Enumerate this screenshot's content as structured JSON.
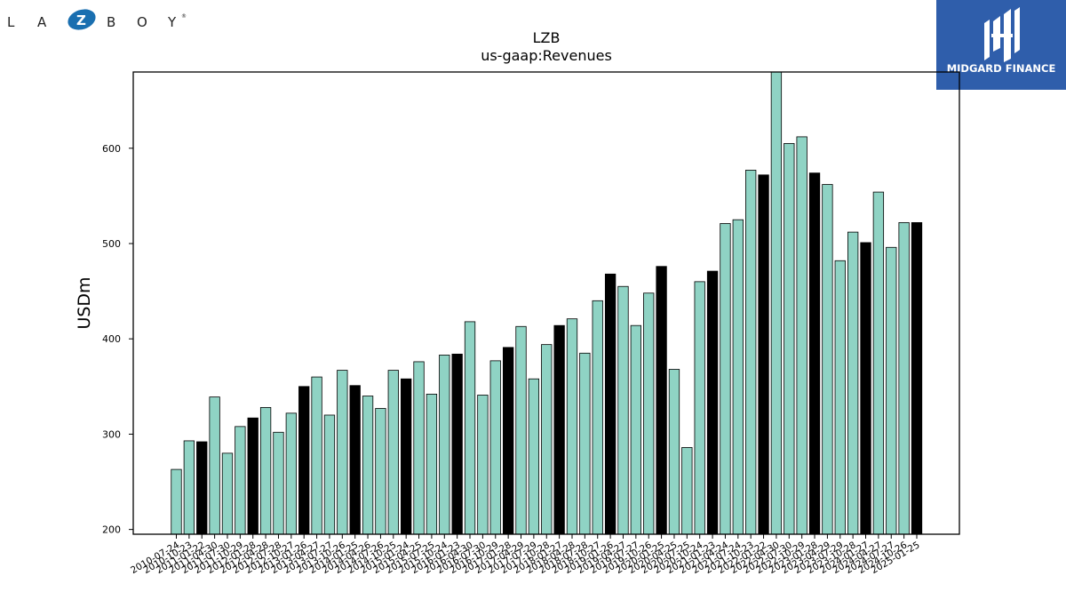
{
  "brand_left": {
    "letters": [
      "L",
      "A",
      "Z",
      "B",
      "O",
      "Y"
    ],
    "trademark": "®",
    "color": "#1a6fb0"
  },
  "brand_right": {
    "name": "MIDGARD FINANCE",
    "background": "#2f5eab"
  },
  "chart_data": {
    "type": "bar",
    "title": "LZB",
    "subtitle": "us-gaap:Revenues",
    "ylabel": "USDm",
    "xlabel": "",
    "ylim": [
      195,
      680
    ],
    "yticks": [
      200,
      300,
      400,
      500,
      600
    ],
    "grid": false,
    "legend": "none",
    "colors": {
      "quarter": "#8fd3c4",
      "fiscal_q4": "#000000",
      "edge": "#000000"
    },
    "categories": [
      "2010-07-24",
      "2010-10-23",
      "2011-01-22",
      "2011-04-30",
      "2011-07-30",
      "2011-10-29",
      "2012-01-28",
      "2012-04-28",
      "2012-07-28",
      "2012-10-27",
      "2013-01-26",
      "2013-04-27",
      "2013-07-27",
      "2013-10-26",
      "2014-01-25",
      "2014-04-26",
      "2014-07-26",
      "2014-10-25",
      "2015-01-24",
      "2015-04-25",
      "2015-07-25",
      "2015-10-24",
      "2016-01-23",
      "2016-04-30",
      "2016-07-30",
      "2016-10-29",
      "2017-01-28",
      "2017-04-29",
      "2017-07-29",
      "2017-10-28",
      "2018-01-27",
      "2018-04-28",
      "2018-07-28",
      "2018-10-27",
      "2019-01-26",
      "2019-04-27",
      "2019-07-27",
      "2019-10-26",
      "2020-01-25",
      "2020-04-25",
      "2020-07-25",
      "2020-10-24",
      "2021-01-23",
      "2021-04-24",
      "2021-07-24",
      "2021-10-23",
      "2022-01-22",
      "2022-04-30",
      "2022-07-30",
      "2022-10-29",
      "2023-01-28",
      "2023-04-29",
      "2023-07-29",
      "2023-10-28",
      "2024-01-27",
      "2024-04-27",
      "2024-07-27",
      "2024-10-26",
      "2025-01-25"
    ],
    "tick_labels": [
      "2010-07-24",
      "2010-10-23",
      "2011-01-22",
      "2011-04-30",
      "2011-07-30",
      "2011-10-29",
      "2012-01-28",
      "2012-04-28",
      "2012-07-28",
      "2012-10-27",
      "2013-01-26",
      "2013-04-27",
      "2013-07-27",
      "2013-10-26",
      "2014-01-25",
      "2014-04-26",
      "2014-07-26",
      "2014-10-25",
      "2015-01-24",
      "2015-04-25",
      "2015-07-25",
      "2015-10-24",
      "2016-01-23",
      "2016-04-30",
      "2016-07-30",
      "2016-10-29",
      "2017-01-28",
      "2017-04-29",
      "2017-07-29",
      "2017-10-28",
      "2018-01-27",
      "2018-04-28",
      "2018-07-28",
      "2018-10-27",
      "2019-01-26",
      "2019-04-27",
      "2019-07-27",
      "2019-10-26",
      "2020-01-25",
      "2020-04-25",
      "2020-07-25",
      "2020-10-24",
      "2021-01-23",
      "2021-04-24",
      "2021-07-24",
      "2021-10-23",
      "2022-01-22",
      "2022-04-30",
      "2022-07-30",
      "2022-10-29",
      "2023-01-28",
      "2023-04-29",
      "2023-07-29",
      "2023-10-28",
      "2024-01-27",
      "2024-04-27",
      "2024-07-27",
      "2024-10-26",
      "2025-01-25"
    ],
    "values": [
      263,
      293,
      292,
      339,
      280,
      308,
      317,
      328,
      302,
      322,
      350,
      360,
      320,
      367,
      351,
      340,
      327,
      367,
      358,
      376,
      342,
      383,
      384,
      418,
      341,
      377,
      391,
      413,
      358,
      394,
      414,
      421,
      385,
      440,
      468,
      455,
      414,
      448,
      476,
      368,
      286,
      460,
      471,
      521,
      525,
      577,
      572,
      680,
      605,
      612,
      574,
      562,
      482,
      512,
      501,
      554,
      496,
      522,
      522
    ],
    "highlight_q4": [
      false,
      false,
      true,
      false,
      false,
      false,
      true,
      false,
      false,
      false,
      true,
      false,
      false,
      false,
      true,
      false,
      false,
      false,
      true,
      false,
      false,
      false,
      true,
      false,
      false,
      false,
      true,
      false,
      false,
      false,
      true,
      false,
      false,
      false,
      true,
      false,
      false,
      false,
      true,
      false,
      false,
      false,
      true,
      false,
      false,
      false,
      true,
      false,
      false,
      false,
      true,
      false,
      false,
      false,
      true,
      false,
      false,
      false,
      true
    ]
  }
}
